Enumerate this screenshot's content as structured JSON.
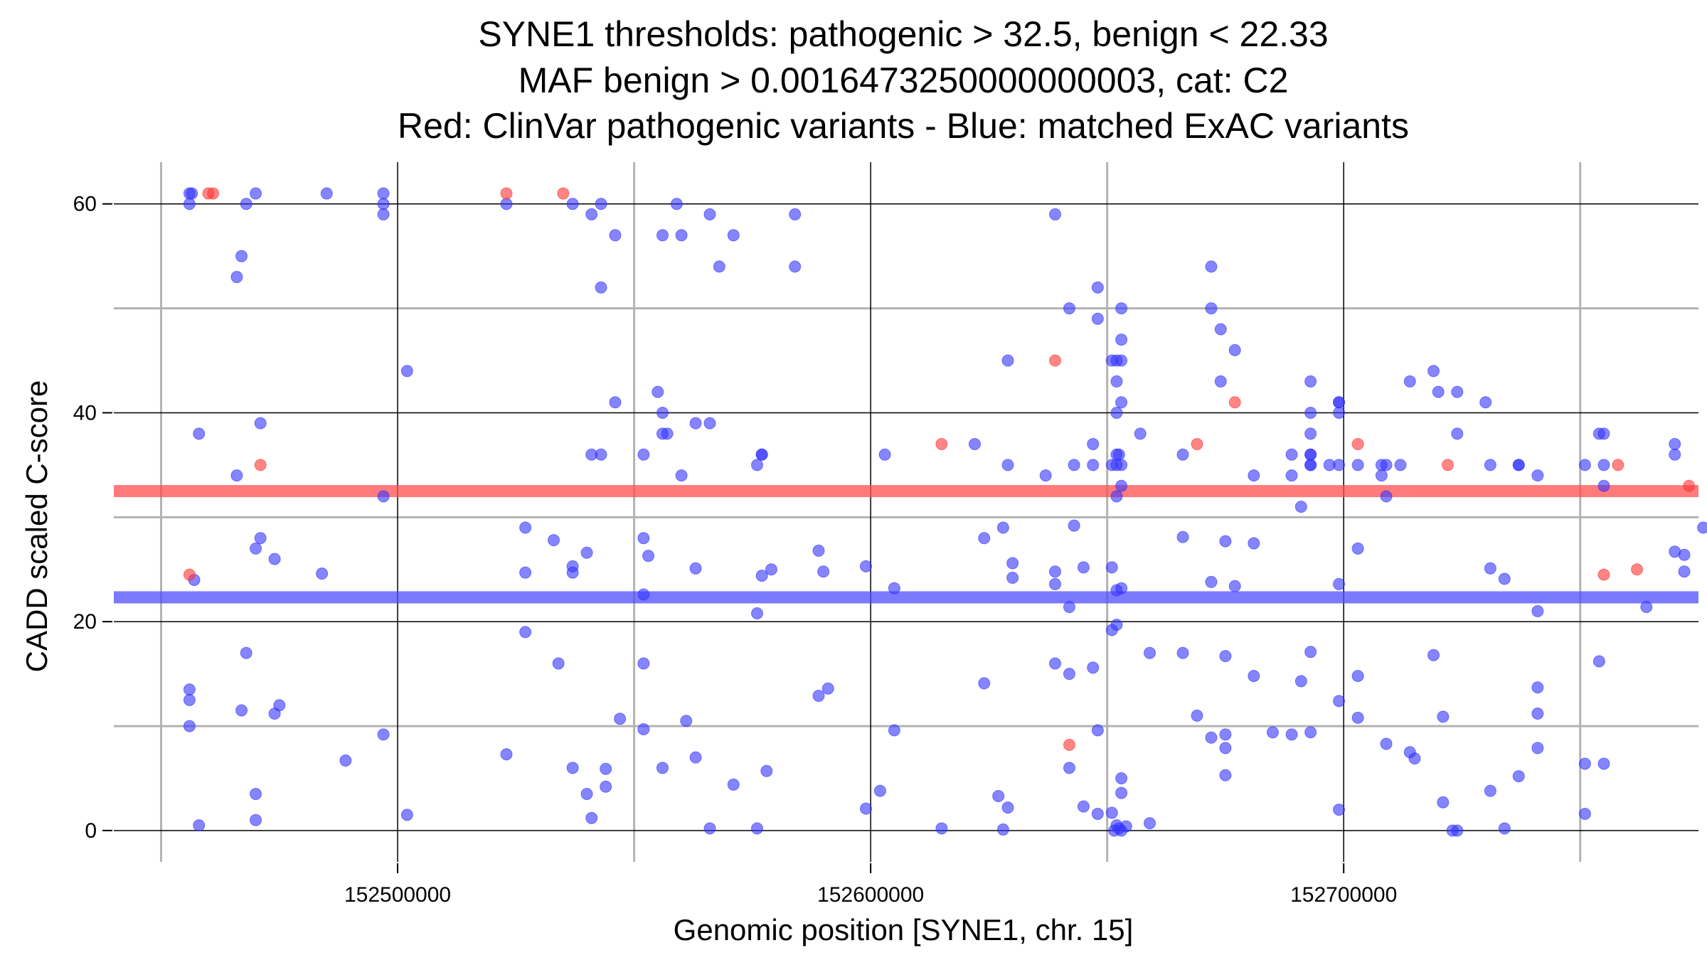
{
  "chart_data": {
    "type": "scatter",
    "title": [
      "SYNE1 thresholds: pathogenic > 32.5, benign < 22.33",
      "MAF benign > 0.0016473250000000003, cat: C2",
      "Red: ClinVar pathogenic variants - Blue: matched ExAC variants"
    ],
    "xlabel": "Genomic position [SYNE1, chr. 15]",
    "ylabel": "CADD scaled C-score",
    "xlim": [
      152440000,
      152775000
    ],
    "ylim": [
      -3,
      64
    ],
    "x_ticks": [
      152500000,
      152600000,
      152700000
    ],
    "x_tick_labels": [
      "152500000",
      "152600000",
      "152700000"
    ],
    "y_ticks": [
      0,
      20,
      40,
      60
    ],
    "y_tick_labels": [
      "0",
      "20",
      "40",
      "60"
    ],
    "grid": true,
    "thresholds": [
      {
        "name": "pathogenic",
        "value": 32.5,
        "color": "#ff4d4d"
      },
      {
        "name": "benign",
        "value": 22.33,
        "color": "#4d4dff"
      }
    ],
    "series": [
      {
        "name": "ClinVar pathogenic variants",
        "color": "#ff3333",
        "points": [
          [
            152461000,
            61
          ],
          [
            152460000,
            61
          ],
          [
            152471000,
            35
          ],
          [
            152456000,
            24.5
          ],
          [
            152523000,
            61
          ],
          [
            152535000,
            61
          ],
          [
            152615000,
            37
          ],
          [
            152639000,
            45
          ],
          [
            152642000,
            8.2
          ],
          [
            152669000,
            37
          ],
          [
            152677000,
            41
          ],
          [
            152703000,
            37
          ],
          [
            152722000,
            35
          ],
          [
            152755000,
            24.5
          ],
          [
            152758000,
            35
          ],
          [
            152762000,
            25
          ],
          [
            152773000,
            33
          ]
        ]
      },
      {
        "name": "matched ExAC variants",
        "color": "#3333ff",
        "points": [
          [
            152456000,
            61
          ],
          [
            152456500,
            61
          ],
          [
            152456000,
            60
          ],
          [
            152458000,
            38
          ],
          [
            152456000,
            13.5
          ],
          [
            152456000,
            12.5
          ],
          [
            152456000,
            10
          ],
          [
            152457000,
            24
          ],
          [
            152458000,
            0.5
          ],
          [
            152466000,
            53
          ],
          [
            152467000,
            55
          ],
          [
            152468000,
            60
          ],
          [
            152470000,
            61
          ],
          [
            152466000,
            34
          ],
          [
            152471000,
            39
          ],
          [
            152471000,
            28
          ],
          [
            152470000,
            27
          ],
          [
            152474000,
            26
          ],
          [
            152468000,
            17
          ],
          [
            152467000,
            11.5
          ],
          [
            152474000,
            11.2
          ],
          [
            152475000,
            12
          ],
          [
            152470000,
            3.5
          ],
          [
            152470000,
            1
          ],
          [
            152485000,
            61
          ],
          [
            152484000,
            24.6
          ],
          [
            152489000,
            6.7
          ],
          [
            152497000,
            61
          ],
          [
            152497000,
            60
          ],
          [
            152497000,
            59
          ],
          [
            152497000,
            32
          ],
          [
            152497000,
            9.2
          ],
          [
            152502000,
            44
          ],
          [
            152502000,
            1.5
          ],
          [
            152523000,
            60
          ],
          [
            152523000,
            7.3
          ],
          [
            152527000,
            29
          ],
          [
            152527000,
            24.7
          ],
          [
            152527000,
            19
          ],
          [
            152533000,
            27.8
          ],
          [
            152534000,
            16
          ],
          [
            152537000,
            60
          ],
          [
            152537000,
            25.3
          ],
          [
            152537000,
            24.7
          ],
          [
            152537000,
            6
          ],
          [
            152540000,
            26.6
          ],
          [
            152541000,
            59
          ],
          [
            152541000,
            36
          ],
          [
            152540000,
            3.5
          ],
          [
            152541000,
            1.2
          ],
          [
            152543000,
            60
          ],
          [
            152543000,
            52
          ],
          [
            152543000,
            36
          ],
          [
            152544000,
            5.9
          ],
          [
            152544000,
            4.2
          ],
          [
            152546000,
            57
          ],
          [
            152546000,
            41
          ],
          [
            152547000,
            10.7
          ],
          [
            152552000,
            36
          ],
          [
            152552000,
            28
          ],
          [
            152553000,
            26.3
          ],
          [
            152552000,
            22.6
          ],
          [
            152552000,
            16
          ],
          [
            152552000,
            9.7
          ],
          [
            152556000,
            57
          ],
          [
            152556000,
            40
          ],
          [
            152555000,
            42
          ],
          [
            152556000,
            38
          ],
          [
            152557000,
            38
          ],
          [
            152556000,
            6
          ],
          [
            152559000,
            60
          ],
          [
            152560000,
            57
          ],
          [
            152560000,
            34
          ],
          [
            152561000,
            10.5
          ],
          [
            152563000,
            39
          ],
          [
            152563000,
            25.1
          ],
          [
            152563000,
            7
          ],
          [
            152566000,
            59
          ],
          [
            152566000,
            39
          ],
          [
            152566000,
            0.2
          ],
          [
            152568000,
            54
          ],
          [
            152571000,
            57
          ],
          [
            152571000,
            4.4
          ],
          [
            152577000,
            36
          ],
          [
            152577000,
            36
          ],
          [
            152576000,
            35
          ],
          [
            152577000,
            24.4
          ],
          [
            152576000,
            20.8
          ],
          [
            152576000,
            0.2
          ],
          [
            152579000,
            25
          ],
          [
            152578000,
            5.7
          ],
          [
            152584000,
            59
          ],
          [
            152584000,
            54
          ],
          [
            152589000,
            26.8
          ],
          [
            152590000,
            24.8
          ],
          [
            152589000,
            12.9
          ],
          [
            152591000,
            13.6
          ],
          [
            152599000,
            25.3
          ],
          [
            152599000,
            2.1
          ],
          [
            152603000,
            36
          ],
          [
            152605000,
            23.2
          ],
          [
            152605000,
            9.6
          ],
          [
            152602000,
            3.8
          ],
          [
            152615000,
            0.2
          ],
          [
            152622000,
            37
          ],
          [
            152624000,
            28
          ],
          [
            152624000,
            14.1
          ],
          [
            152629000,
            45
          ],
          [
            152629000,
            35
          ],
          [
            152630000,
            25.6
          ],
          [
            152630000,
            24.2
          ],
          [
            152628000,
            29
          ],
          [
            152627000,
            3.3
          ],
          [
            152629000,
            2.2
          ],
          [
            152628000,
            0.1
          ],
          [
            152639000,
            59
          ],
          [
            152637000,
            34
          ],
          [
            152639000,
            24.8
          ],
          [
            152639000,
            23.6
          ],
          [
            152639000,
            16
          ],
          [
            152642000,
            50
          ],
          [
            152643000,
            35
          ],
          [
            152643000,
            29.2
          ],
          [
            152642000,
            21.4
          ],
          [
            152642000,
            15
          ],
          [
            152642000,
            6
          ],
          [
            152645000,
            25.2
          ],
          [
            152645000,
            2.3
          ],
          [
            152647000,
            37
          ],
          [
            152647000,
            35
          ],
          [
            152648000,
            52
          ],
          [
            152648000,
            49
          ],
          [
            152647000,
            15.6
          ],
          [
            152648000,
            9.6
          ],
          [
            152648000,
            1.6
          ],
          [
            152651000,
            45
          ],
          [
            152652000,
            45
          ],
          [
            152653000,
            45
          ],
          [
            152652000,
            43
          ],
          [
            152652000,
            40
          ],
          [
            152652000,
            36
          ],
          [
            152652500,
            36
          ],
          [
            152651000,
            35
          ],
          [
            152652000,
            35
          ],
          [
            152653000,
            35
          ],
          [
            152652000,
            32
          ],
          [
            152653000,
            33
          ],
          [
            152651000,
            25.2
          ],
          [
            152652000,
            23
          ],
          [
            152653000,
            23.2
          ],
          [
            152652000,
            19.7
          ],
          [
            152651000,
            19.2
          ],
          [
            152651000,
            1.7
          ],
          [
            152652000,
            0.5
          ],
          [
            152652500,
            0.2
          ],
          [
            152653000,
            0
          ],
          [
            152651500,
            0
          ],
          [
            152653000,
            5
          ],
          [
            152653000,
            3.6
          ],
          [
            152654000,
            0.4
          ],
          [
            152653000,
            50
          ],
          [
            152653000,
            47
          ],
          [
            152653000,
            41
          ],
          [
            152657000,
            38
          ],
          [
            152659000,
            17
          ],
          [
            152659000,
            0.7
          ],
          [
            152666000,
            36
          ],
          [
            152666000,
            28.1
          ],
          [
            152666000,
            17
          ],
          [
            152669000,
            11
          ],
          [
            152672000,
            54
          ],
          [
            152672000,
            50
          ],
          [
            152672000,
            23.8
          ],
          [
            152672000,
            8.9
          ],
          [
            152674000,
            48
          ],
          [
            152674000,
            43
          ],
          [
            152675000,
            27.7
          ],
          [
            152675000,
            16.7
          ],
          [
            152675000,
            9.2
          ],
          [
            152675000,
            7.9
          ],
          [
            152675000,
            5.3
          ],
          [
            152677000,
            46
          ],
          [
            152677000,
            23.4
          ],
          [
            152681000,
            34
          ],
          [
            152681000,
            27.5
          ],
          [
            152681000,
            14.8
          ],
          [
            152685000,
            9.4
          ],
          [
            152689000,
            36
          ],
          [
            152689000,
            34
          ],
          [
            152689000,
            9.2
          ],
          [
            152691000,
            31
          ],
          [
            152691000,
            14.3
          ],
          [
            152693000,
            43
          ],
          [
            152693000,
            40
          ],
          [
            152693000,
            38
          ],
          [
            152693000,
            36
          ],
          [
            152693000,
            36
          ],
          [
            152693000,
            35
          ],
          [
            152693000,
            35
          ],
          [
            152693000,
            17.1
          ],
          [
            152693000,
            9.4
          ],
          [
            152697000,
            35
          ],
          [
            152699000,
            41
          ],
          [
            152699000,
            41
          ],
          [
            152699000,
            40
          ],
          [
            152699000,
            35
          ],
          [
            152699000,
            23.6
          ],
          [
            152699000,
            12.4
          ],
          [
            152699000,
            2
          ],
          [
            152703000,
            35
          ],
          [
            152703000,
            27
          ],
          [
            152703000,
            14.8
          ],
          [
            152703000,
            10.8
          ],
          [
            152708000,
            35
          ],
          [
            152708000,
            34
          ],
          [
            152709000,
            35
          ],
          [
            152709000,
            32
          ],
          [
            152712000,
            35
          ],
          [
            152709000,
            8.3
          ],
          [
            152714000,
            43
          ],
          [
            152714000,
            7.5
          ],
          [
            152715000,
            6.9
          ],
          [
            152719000,
            44
          ],
          [
            152719000,
            16.8
          ],
          [
            152720000,
            42
          ],
          [
            152721000,
            10.9
          ],
          [
            152721000,
            2.7
          ],
          [
            152724000,
            42
          ],
          [
            152724000,
            38
          ],
          [
            152724000,
            0
          ],
          [
            152723000,
            0
          ],
          [
            152730000,
            41
          ],
          [
            152731000,
            35
          ],
          [
            152731000,
            25.1
          ],
          [
            152731000,
            3.8
          ],
          [
            152734000,
            24.1
          ],
          [
            152734000,
            0.2
          ],
          [
            152737000,
            35
          ],
          [
            152737000,
            35
          ],
          [
            152737000,
            5.2
          ],
          [
            152741000,
            34
          ],
          [
            152741000,
            21
          ],
          [
            152741000,
            13.7
          ],
          [
            152741000,
            11.2
          ],
          [
            152741000,
            7.9
          ],
          [
            152751000,
            35
          ],
          [
            152751000,
            6.4
          ],
          [
            152751000,
            1.6
          ],
          [
            152754000,
            38
          ],
          [
            152755000,
            38
          ],
          [
            152755000,
            35
          ],
          [
            152755000,
            33
          ],
          [
            152754000,
            16.2
          ],
          [
            152755000,
            6.4
          ],
          [
            152764000,
            21.4
          ],
          [
            152770000,
            37
          ],
          [
            152770000,
            36
          ],
          [
            152770000,
            26.7
          ],
          [
            152772000,
            26.4
          ],
          [
            152772000,
            24.8
          ],
          [
            152776000,
            29
          ]
        ]
      }
    ]
  }
}
